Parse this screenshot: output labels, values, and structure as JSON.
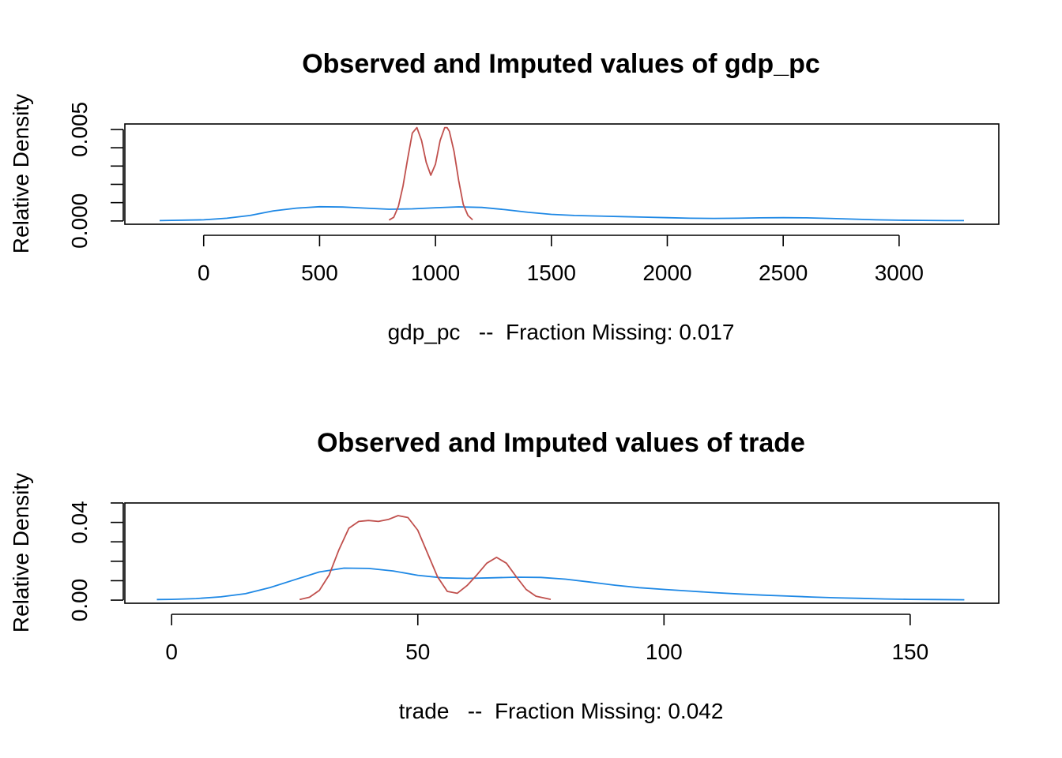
{
  "chart_data": [
    {
      "type": "line",
      "title": "Observed and Imputed values of gdp_pc",
      "xlabel": "gdp_pc   --  Fraction Missing: 0.017",
      "ylabel": "Relative Density",
      "xlim": [
        -340,
        3430
      ],
      "ylim": [
        -0.00018,
        0.0053
      ],
      "x_ticks": [
        0,
        500,
        1000,
        1500,
        2000,
        2500,
        3000
      ],
      "x_tick_labels": [
        "0",
        "500",
        "1000",
        "1500",
        "2000",
        "2500",
        "3000"
      ],
      "y_ticks": [
        0,
        0.001,
        0.002,
        0.003,
        0.004,
        0.005
      ],
      "y_tick_labels": [
        "0.000",
        "",
        "",
        "",
        "",
        "0.005"
      ],
      "grid": false,
      "series": [
        {
          "color": "#1E88E5",
          "x": [
            -190,
            0,
            100,
            200,
            300,
            400,
            500,
            600,
            700,
            800,
            900,
            1000,
            1100,
            1200,
            1300,
            1400,
            1500,
            1600,
            1700,
            1800,
            1900,
            2000,
            2100,
            2200,
            2300,
            2400,
            2500,
            2600,
            2700,
            2800,
            2900,
            3000,
            3100,
            3200,
            3280
          ],
          "y": [
            2e-05,
            6e-05,
            0.00015,
            0.0003,
            0.00055,
            0.0007,
            0.00078,
            0.00076,
            0.0007,
            0.00064,
            0.00066,
            0.00072,
            0.00077,
            0.00074,
            0.00062,
            0.00047,
            0.00036,
            0.0003,
            0.00027,
            0.00024,
            0.00021,
            0.00018,
            0.00015,
            0.00014,
            0.00015,
            0.00017,
            0.00018,
            0.00017,
            0.00014,
            0.0001,
            6e-05,
            4e-05,
            3e-05,
            2e-05,
            2e-05
          ]
        },
        {
          "color": "#C0504D",
          "x": [
            800,
            820,
            840,
            860,
            880,
            900,
            920,
            940,
            960,
            980,
            1000,
            1020,
            1040,
            1050,
            1060,
            1080,
            1100,
            1120,
            1140,
            1160
          ],
          "y": [
            5e-05,
            0.0002,
            0.0008,
            0.0019,
            0.0034,
            0.0048,
            0.0051,
            0.0044,
            0.0032,
            0.0025,
            0.0031,
            0.0044,
            0.0051,
            0.0051,
            0.0049,
            0.0038,
            0.0022,
            0.0009,
            0.0003,
            6e-05
          ]
        }
      ]
    },
    {
      "type": "line",
      "title": "Observed and Imputed values of trade",
      "xlabel": "trade   --  Fraction Missing: 0.042",
      "ylabel": "Relative Density",
      "xlim": [
        -9.5,
        168
      ],
      "ylim": [
        -0.0016,
        0.05
      ],
      "x_ticks": [
        0,
        50,
        100,
        150
      ],
      "x_tick_labels": [
        "0",
        "50",
        "100",
        "150"
      ],
      "y_ticks": [
        0,
        0.01,
        0.02,
        0.03,
        0.04,
        0.05
      ],
      "y_tick_labels": [
        "0.00",
        "",
        "",
        "",
        "0.04",
        ""
      ],
      "grid": false,
      "series": [
        {
          "color": "#1E88E5",
          "x": [
            -3,
            0,
            5,
            10,
            15,
            20,
            25,
            30,
            35,
            40,
            45,
            50,
            55,
            60,
            65,
            70,
            75,
            80,
            85,
            90,
            95,
            100,
            105,
            110,
            115,
            120,
            125,
            130,
            135,
            140,
            145,
            150,
            155,
            161
          ],
          "y": [
            0.0003,
            0.0004,
            0.0008,
            0.0017,
            0.0033,
            0.0065,
            0.0105,
            0.0145,
            0.0165,
            0.0163,
            0.015,
            0.0128,
            0.0115,
            0.0112,
            0.0115,
            0.0118,
            0.0117,
            0.0108,
            0.0093,
            0.0077,
            0.0064,
            0.0055,
            0.0047,
            0.0039,
            0.0032,
            0.0026,
            0.0021,
            0.0016,
            0.0012,
            0.0009,
            0.0006,
            0.0004,
            0.0003,
            0.0002
          ]
        },
        {
          "color": "#C0504D",
          "x": [
            26,
            28,
            30,
            32,
            34,
            36,
            38,
            40,
            42,
            44,
            46,
            48,
            50,
            52,
            54,
            56,
            58,
            60,
            62,
            64,
            66,
            68,
            70,
            72,
            74,
            77
          ],
          "y": [
            0.0003,
            0.0015,
            0.005,
            0.013,
            0.026,
            0.037,
            0.0405,
            0.041,
            0.0405,
            0.0415,
            0.0435,
            0.0425,
            0.036,
            0.024,
            0.012,
            0.0045,
            0.0035,
            0.0075,
            0.013,
            0.019,
            0.022,
            0.019,
            0.012,
            0.0055,
            0.002,
            0.0004
          ]
        }
      ]
    }
  ]
}
